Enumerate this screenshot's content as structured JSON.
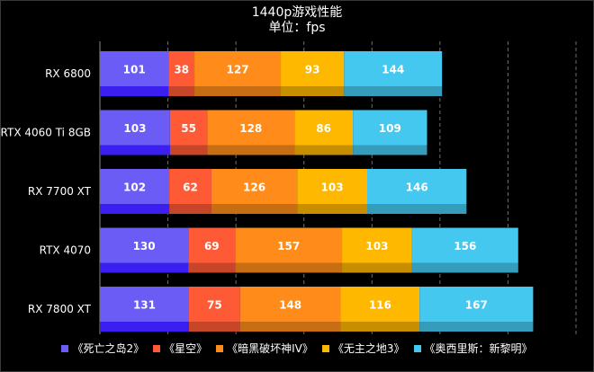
{
  "chart_data": {
    "type": "bar",
    "orientation": "horizontal",
    "stacked": true,
    "title": "1440p游戏性能",
    "subtitle": "单位：fps",
    "categories": [
      "RX 6800",
      "RTX 4060 Ti 8GB",
      "RX 7700 XT",
      "RTX 4070",
      "RX 7800 XT"
    ],
    "series": [
      {
        "name": "《死亡之岛2》",
        "color": "#6b5cf6",
        "values": [
          101,
          103,
          102,
          130,
          131
        ]
      },
      {
        "name": "《星空》",
        "color": "#ff5a36",
        "values": [
          38,
          55,
          62,
          69,
          75
        ]
      },
      {
        "name": "《暗黑破坏神IV》",
        "color": "#ff8c1a",
        "values": [
          127,
          128,
          126,
          157,
          148
        ]
      },
      {
        "name": "《无主之地3》",
        "color": "#ffb800",
        "values": [
          93,
          86,
          103,
          103,
          116
        ]
      },
      {
        "name": "《奥西里斯：新黎明》",
        "color": "#45c8f0",
        "values": [
          144,
          109,
          146,
          156,
          167
        ]
      }
    ],
    "xlim": [
      0,
      700
    ],
    "grid": true,
    "legend_position": "bottom"
  }
}
